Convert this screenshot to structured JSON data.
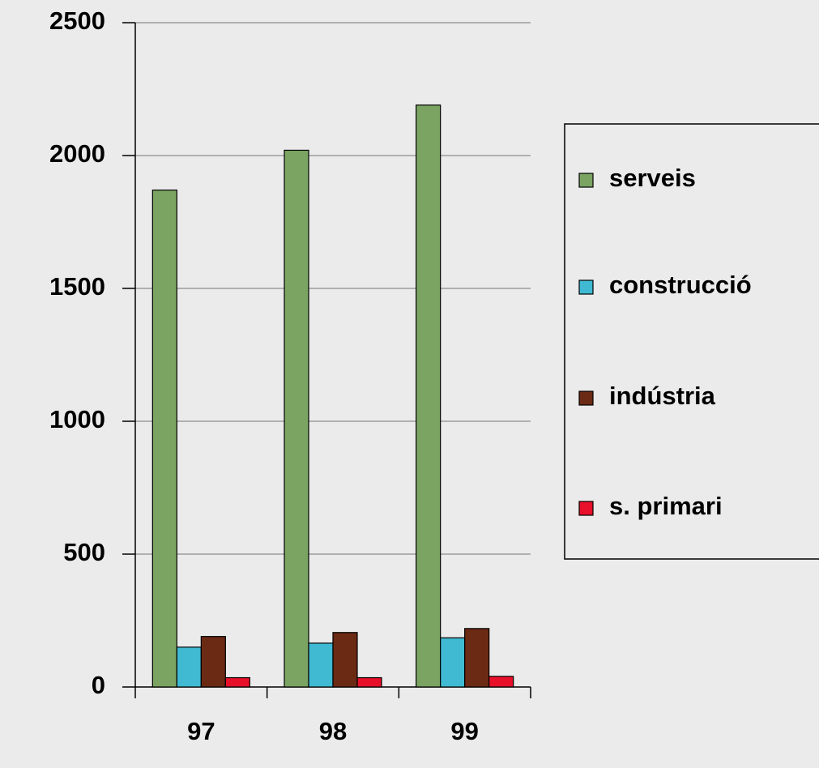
{
  "chart_data": {
    "type": "bar",
    "categories": [
      "97",
      "98",
      "99"
    ],
    "series": [
      {
        "name": "serveis",
        "color": "#7ba462",
        "values": [
          1870,
          2020,
          2190
        ]
      },
      {
        "name": "construcció",
        "color": "#40bad2",
        "values": [
          150,
          165,
          185
        ]
      },
      {
        "name": "indústria",
        "color": "#6b2a14",
        "values": [
          190,
          205,
          220
        ]
      },
      {
        "name": "s. primari",
        "color": "#e8102a",
        "values": [
          35,
          35,
          40
        ]
      }
    ],
    "ylim": [
      0,
      2500
    ],
    "yticks": [
      0,
      500,
      1000,
      1500,
      2000,
      2500
    ],
    "grid": true,
    "legend": "right"
  }
}
